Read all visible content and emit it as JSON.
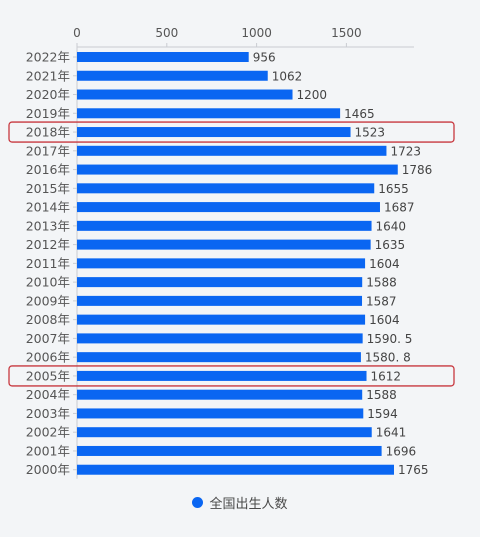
{
  "chart_data": {
    "type": "bar",
    "orientation": "horizontal",
    "categories": [
      "2022年",
      "2021年",
      "2020年",
      "2019年",
      "2018年",
      "2017年",
      "2016年",
      "2015年",
      "2014年",
      "2013年",
      "2012年",
      "2011年",
      "2010年",
      "2009年",
      "2008年",
      "2007年",
      "2006年",
      "2005年",
      "2004年",
      "2003年",
      "2002年",
      "2001年",
      "2000年"
    ],
    "series": [
      {
        "name": "全国出生人数",
        "values": [
          956,
          1062,
          1200,
          1465,
          1523,
          1723,
          1786,
          1655,
          1687,
          1640,
          1635,
          1604,
          1588,
          1587,
          1604,
          1590.5,
          1580.8,
          1612,
          1588,
          1594,
          1641,
          1696,
          1765
        ],
        "labels": [
          "956",
          "1062",
          "1200",
          "1465",
          "1523",
          "1723",
          "1786",
          "1655",
          "1687",
          "1640",
          "1635",
          "1604",
          "1588",
          "1587",
          "1604",
          "1590. 5",
          "1580. 8",
          "1612",
          "1588",
          "1594",
          "1641",
          "1696",
          "1765"
        ]
      }
    ],
    "xaxis": {
      "position": "top",
      "ticks": [
        0,
        500,
        1000,
        1500
      ],
      "range": [
        0,
        1880
      ]
    },
    "grid": false,
    "highlighted": [
      "2018年",
      "2005年"
    ],
    "legend": {
      "position": "bottom-center",
      "label": "全国出生人数"
    },
    "colors": {
      "bar": "#0a66f2",
      "highlight_box": "#c8383f",
      "axis": "#c9ccd1",
      "text": "#555555"
    }
  }
}
